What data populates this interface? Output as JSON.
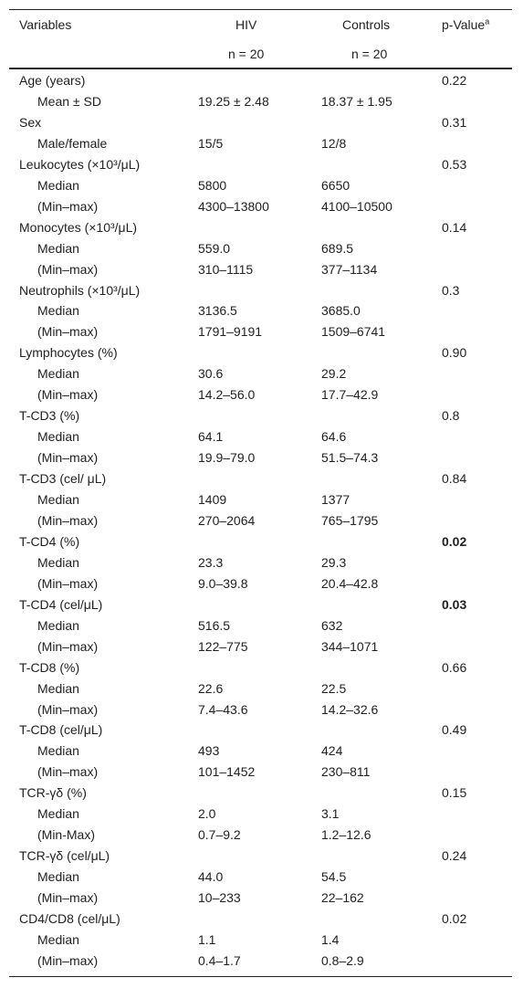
{
  "table": {
    "header": {
      "variables": "Variables",
      "hiv": "HIV",
      "controls": "Controls",
      "p": "p-Value",
      "p_note": "a",
      "hiv_n": "n = 20",
      "controls_n": "n = 20"
    },
    "groups": [
      {
        "label": "Age (years)",
        "p": "0.22",
        "rows": [
          {
            "label": "Mean ± SD",
            "hiv": "19.25 ± 2.48",
            "controls": "18.37 ± 1.95"
          }
        ]
      },
      {
        "label": "Sex",
        "p": "0.31",
        "rows": [
          {
            "label": "Male/female",
            "hiv": "15/5",
            "controls": "12/8"
          }
        ]
      },
      {
        "label": "Leukocytes (×10³/μL)",
        "p": "0.53",
        "rows": [
          {
            "label": "Median",
            "hiv": "5800",
            "controls": "6650"
          },
          {
            "label": "(Min–max)",
            "hiv": "4300–13800",
            "controls": "4100–10500"
          }
        ]
      },
      {
        "label": "Monocytes (×10³/μL)",
        "p": "0.14",
        "rows": [
          {
            "label": "Median",
            "hiv": "559.0",
            "controls": "689.5"
          },
          {
            "label": "(Min–max)",
            "hiv": "310–1115",
            "controls": "377–1134"
          }
        ]
      },
      {
        "label": "Neutrophils (×10³/μL)",
        "p": "0.3",
        "rows": [
          {
            "label": "Median",
            "hiv": "3136.5",
            "controls": "3685.0"
          },
          {
            "label": "(Min–max)",
            "hiv": "1791–9191",
            "controls": "1509–6741"
          }
        ]
      },
      {
        "label": "Lymphocytes (%)",
        "p": "0.90",
        "rows": [
          {
            "label": "Median",
            "hiv": "30.6",
            "controls": "29.2"
          },
          {
            "label": "(Min–max)",
            "hiv": "14.2–56.0",
            "controls": "17.7–42.9"
          }
        ]
      },
      {
        "label": "T-CD3 (%)",
        "p": "0.8",
        "rows": [
          {
            "label": "Median",
            "hiv": "64.1",
            "controls": "64.6"
          },
          {
            "label": "(Min–max)",
            "hiv": "19.9–79.0",
            "controls": "51.5–74.3"
          }
        ]
      },
      {
        "label": "T-CD3 (cel/ μL)",
        "p": "0.84",
        "rows": [
          {
            "label": "Median",
            "hiv": "1409",
            "controls": "1377"
          },
          {
            "label": "(Min–max)",
            "hiv": "270–2064",
            "controls": "765–1795"
          }
        ]
      },
      {
        "label": "T-CD4 (%)",
        "p": "0.02",
        "p_bold": true,
        "rows": [
          {
            "label": "Median",
            "hiv": "23.3",
            "controls": "29.3"
          },
          {
            "label": "(Min–max)",
            "hiv": "9.0–39.8",
            "controls": "20.4–42.8"
          }
        ]
      },
      {
        "label": "T-CD4 (cel/μL)",
        "p": "0.03",
        "p_bold": true,
        "rows": [
          {
            "label": "Median",
            "hiv": "516.5",
            "controls": "632"
          },
          {
            "label": "(Min–max)",
            "hiv": "122–775",
            "controls": "344–1071"
          }
        ]
      },
      {
        "label": "T-CD8 (%)",
        "p": "0.66",
        "rows": [
          {
            "label": "Median",
            "hiv": "22.6",
            "controls": "22.5"
          },
          {
            "label": "(Min–max)",
            "hiv": "7.4–43.6",
            "controls": "14.2–32.6"
          }
        ]
      },
      {
        "label": "T-CD8 (cel/μL)",
        "p": "0.49",
        "rows": [
          {
            "label": "Median",
            "hiv": "493",
            "controls": "424"
          },
          {
            "label": "(Min–max)",
            "hiv": "101–1452",
            "controls": "230–811"
          }
        ]
      },
      {
        "label": "TCR-γδ (%)",
        "p": "0.15",
        "rows": [
          {
            "label": "Median",
            "hiv": "2.0",
            "controls": "3.1"
          },
          {
            "label": "(Min-Max)",
            "hiv": "0.7–9.2",
            "controls": "1.2–12.6"
          }
        ]
      },
      {
        "label": "TCR-γδ (cel/μL)",
        "p": "0.24",
        "rows": [
          {
            "label": "Median",
            "hiv": "44.0",
            "controls": "54.5"
          },
          {
            "label": "(Min–max)",
            "hiv": "10–233",
            "controls": "22–162"
          }
        ]
      },
      {
        "label": "CD4/CD8 (cel/μL)",
        "p": "0.02",
        "rows": [
          {
            "label": "Median",
            "hiv": "1.1",
            "controls": "1.4"
          },
          {
            "label": "(Min–max)",
            "hiv": "0.4–1.7",
            "controls": "0.8–2.9"
          }
        ]
      }
    ]
  }
}
